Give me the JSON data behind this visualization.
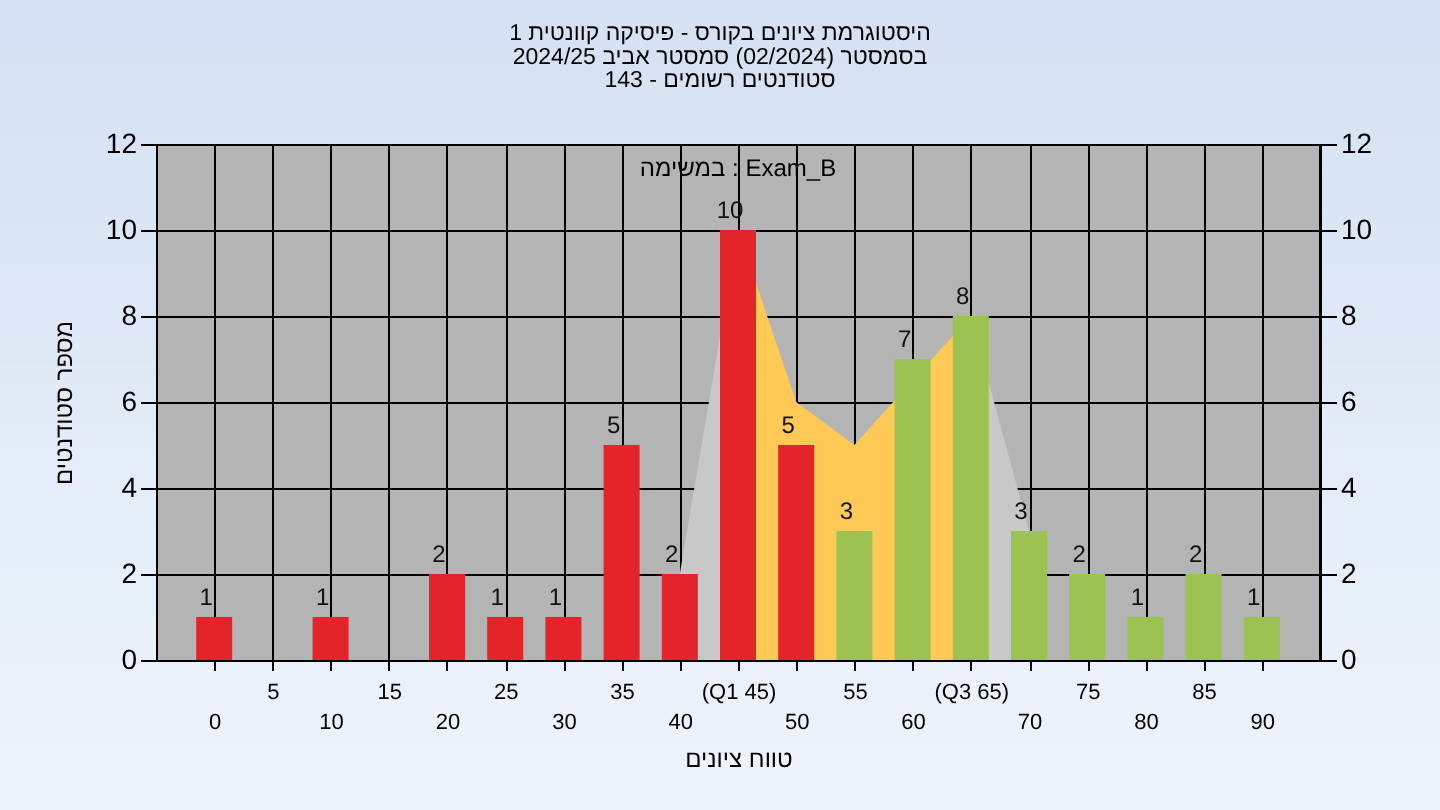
{
  "chart_data": {
    "type": "bar",
    "title": "היסטוגרמת ציונים בקורס - פיסיקה קוונטית 1\nבסמסטר  (02/2024)  סמסטר אביב 2024/25",
    "subtitle": "סטודנטים רשומים - 143",
    "xlabel": "טווח ציונים",
    "ylabel": "מספר סטודנטים",
    "annotations": [
      "במשימה : Exam_B"
    ],
    "categories": [
      "0",
      "5",
      "10",
      "15",
      "20",
      "25",
      "30",
      "35",
      "40",
      "(Q1 45)",
      "50",
      "55",
      "60",
      "(Q3 65)",
      "70",
      "75",
      "80",
      "85",
      "90"
    ],
    "series": [
      {
        "type": "area",
        "color": "#c8c8c8",
        "values": [
          null,
          null,
          null,
          null,
          null,
          null,
          null,
          null,
          2,
          10,
          null,
          null,
          null,
          null,
          null,
          null,
          null,
          null,
          null
        ]
      },
      {
        "type": "area",
        "color": "#ffc955",
        "values": [
          null,
          null,
          null,
          null,
          null,
          null,
          null,
          null,
          null,
          10,
          6,
          5,
          null,
          8,
          null,
          null,
          null,
          null,
          null
        ]
      },
      {
        "type": "area",
        "color": "#c8c8c8",
        "values": [
          null,
          null,
          null,
          null,
          null,
          null,
          null,
          null,
          null,
          null,
          null,
          null,
          null,
          8,
          3,
          null,
          null,
          null,
          null
        ]
      },
      {
        "colors": [
          "#e3242b",
          "#e3242b",
          "#e3242b",
          "#e3242b",
          "#e3242b",
          "#e3242b",
          "#e3242b",
          "#e3242b",
          "#e3242b",
          "#e3242b",
          "#e3242b",
          "#9cc352",
          "#9cc352",
          "#9cc352",
          "#9cc352",
          "#9cc352",
          "#9cc352",
          "#9cc352",
          "#9cc352"
        ],
        "values": [
          1,
          0,
          1,
          0,
          2,
          1,
          1,
          5,
          2,
          10,
          5,
          3,
          7,
          8,
          3,
          2,
          1,
          2,
          1
        ],
        "value_labels": [
          "1",
          null,
          "1",
          null,
          "2",
          "1",
          "1",
          "5",
          "2",
          "10",
          "5",
          "3",
          "7",
          "8",
          "3",
          "2",
          "1",
          "2",
          "1"
        ]
      }
    ],
    "ylim": [
      0,
      12
    ],
    "yticks": [
      0,
      2,
      4,
      6,
      8,
      10,
      12
    ],
    "y2lim": [
      0,
      12
    ],
    "y2ticks": [
      0,
      2,
      4,
      6,
      8,
      10,
      12
    ],
    "grid": true
  }
}
